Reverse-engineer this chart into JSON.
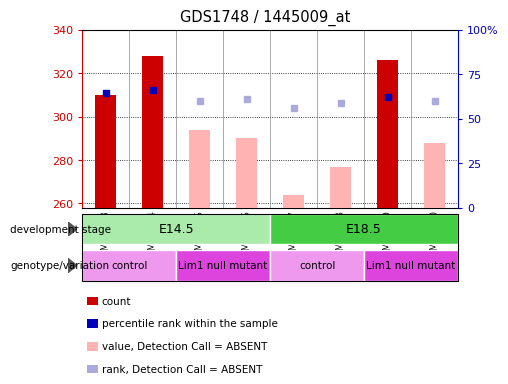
{
  "title": "GDS1748 / 1445009_at",
  "samples": [
    "GSM96563",
    "GSM96564",
    "GSM96565",
    "GSM96566",
    "GSM96567",
    "GSM96568",
    "GSM96569",
    "GSM96570"
  ],
  "ylim_left": [
    258,
    340
  ],
  "ylim_right": [
    0,
    100
  ],
  "yticks_left": [
    260,
    280,
    300,
    320,
    340
  ],
  "yticks_right": [
    0,
    25,
    50,
    75,
    100
  ],
  "bar_values_present": [
    310,
    328,
    null,
    null,
    null,
    null,
    326,
    null
  ],
  "bar_values_absent": [
    null,
    null,
    294,
    290,
    264,
    277,
    null,
    288
  ],
  "dot_values_present": [
    311,
    312,
    null,
    null,
    null,
    null,
    309,
    null
  ],
  "dot_values_absent": [
    null,
    null,
    307,
    308,
    304,
    306,
    null,
    307
  ],
  "bar_color_present": "#cc0000",
  "bar_color_absent": "#ffb3b3",
  "dot_color_present": "#0000bb",
  "dot_color_absent": "#aaaadd",
  "development_stage": [
    {
      "label": "E14.5",
      "start": 0,
      "end": 4,
      "color": "#aaeaaa"
    },
    {
      "label": "E18.5",
      "start": 4,
      "end": 8,
      "color": "#44cc44"
    }
  ],
  "genotype": [
    {
      "label": "control",
      "start": 0,
      "end": 2,
      "color": "#ee99ee"
    },
    {
      "label": "Lim1 null mutant",
      "start": 2,
      "end": 4,
      "color": "#dd44dd"
    },
    {
      "label": "control",
      "start": 4,
      "end": 6,
      "color": "#ee99ee"
    },
    {
      "label": "Lim1 null mutant",
      "start": 6,
      "end": 8,
      "color": "#dd44dd"
    }
  ],
  "legend": [
    {
      "label": "count",
      "color": "#cc0000"
    },
    {
      "label": "percentile rank within the sample",
      "color": "#0000bb"
    },
    {
      "label": "value, Detection Call = ABSENT",
      "color": "#ffb3b3"
    },
    {
      "label": "rank, Detection Call = ABSENT",
      "color": "#aaaadd"
    }
  ],
  "background_color": "#ffffff",
  "axis_left_color": "#cc0000",
  "axis_right_color": "#0000bb"
}
